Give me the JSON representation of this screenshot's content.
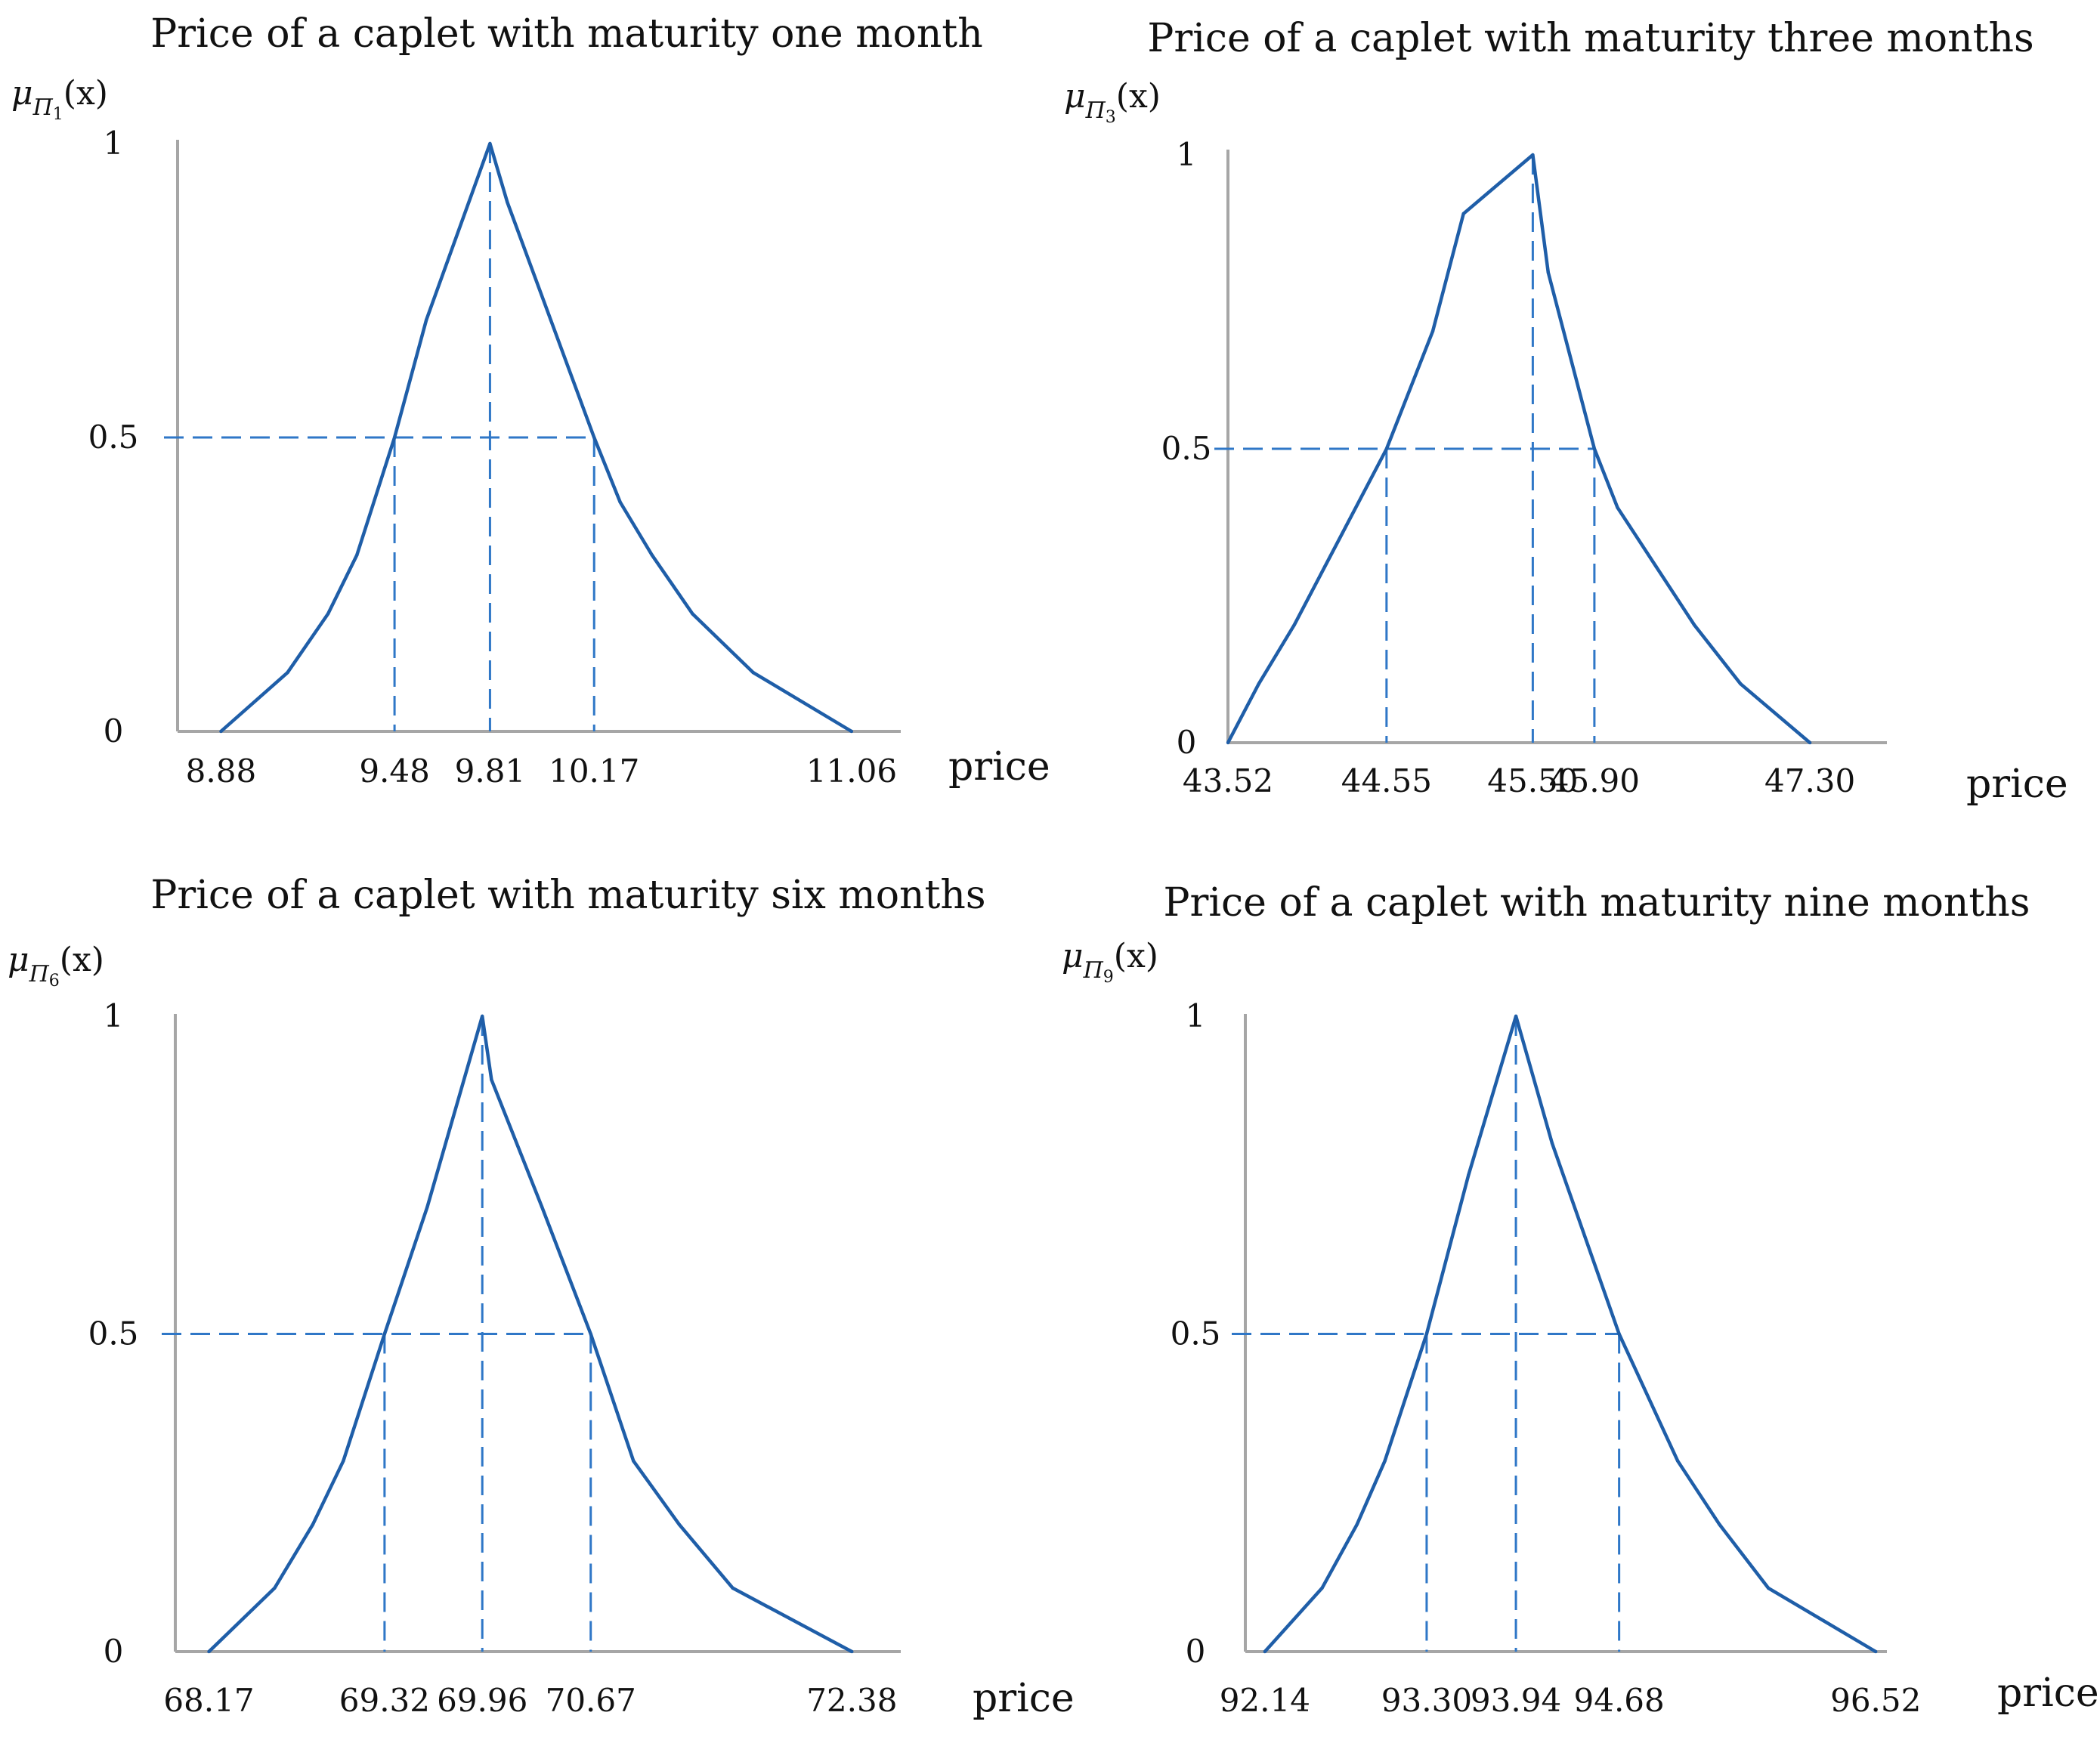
{
  "figure": {
    "curve_color": "#1f5ea8",
    "guide_color": "#2f77c7"
  },
  "chart_data": [
    {
      "type": "line",
      "title": "Price of a caplet with maturity one month",
      "ylabel": {
        "base": "μ",
        "sub_letter": "Π",
        "sub_index": "1",
        "arg": "(x)"
      },
      "xlabel": "price",
      "yticks": [
        {
          "value": 0,
          "label": "0"
        },
        {
          "value": 0.5,
          "label": "0.5"
        },
        {
          "value": 1,
          "label": "1"
        }
      ],
      "xticks": [
        {
          "value": 8.88,
          "label": "8.88"
        },
        {
          "value": 9.48,
          "label": "9.48"
        },
        {
          "value": 9.81,
          "label": "9.81"
        },
        {
          "value": 10.17,
          "label": "10.17"
        },
        {
          "value": 11.06,
          "label": "11.06"
        }
      ],
      "xlim": [
        8.73,
        11.23
      ],
      "ylim": [
        0,
        1
      ],
      "points": [
        [
          8.88,
          0
        ],
        [
          9.11,
          0.1
        ],
        [
          9.25,
          0.2
        ],
        [
          9.35,
          0.3
        ],
        [
          9.48,
          0.5
        ],
        [
          9.59,
          0.7
        ],
        [
          9.81,
          1.0
        ],
        [
          9.87,
          0.9
        ],
        [
          10.02,
          0.7
        ],
        [
          10.17,
          0.5
        ],
        [
          10.26,
          0.39
        ],
        [
          10.37,
          0.3
        ],
        [
          10.51,
          0.2
        ],
        [
          10.72,
          0.1
        ],
        [
          11.06,
          0
        ]
      ],
      "alpha_cut": {
        "level": 0.5,
        "left": 9.48,
        "peak": 9.81,
        "right": 10.17
      }
    },
    {
      "type": "line",
      "title": "Price of a caplet with maturity three months",
      "ylabel": {
        "base": "μ",
        "sub_letter": "Π",
        "sub_index": "3",
        "arg": "(x)"
      },
      "xlabel": "price",
      "yticks": [
        {
          "value": 0,
          "label": "0"
        },
        {
          "value": 0.5,
          "label": "0.5"
        },
        {
          "value": 1,
          "label": "1"
        }
      ],
      "xticks": [
        {
          "value": 43.52,
          "label": "43.52"
        },
        {
          "value": 44.55,
          "label": "44.55"
        },
        {
          "value": 45.5,
          "label": "45.50"
        },
        {
          "value": 45.9,
          "label": "45.90"
        },
        {
          "value": 47.3,
          "label": "47.30"
        }
      ],
      "xlim": [
        43.52,
        47.8
      ],
      "ylim": [
        0,
        1
      ],
      "points": [
        [
          43.52,
          0
        ],
        [
          43.72,
          0.1
        ],
        [
          43.95,
          0.2
        ],
        [
          44.15,
          0.3
        ],
        [
          44.55,
          0.5
        ],
        [
          44.85,
          0.7
        ],
        [
          45.05,
          0.9
        ],
        [
          45.5,
          1.0
        ],
        [
          45.6,
          0.8
        ],
        [
          45.9,
          0.5
        ],
        [
          46.05,
          0.4
        ],
        [
          46.3,
          0.3
        ],
        [
          46.55,
          0.2
        ],
        [
          46.85,
          0.1
        ],
        [
          47.3,
          0
        ]
      ],
      "alpha_cut": {
        "level": 0.5,
        "left": 44.55,
        "peak": 45.5,
        "right": 45.9
      }
    },
    {
      "type": "line",
      "title": "Price of a caplet with maturity six months",
      "ylabel": {
        "base": "μ",
        "sub_letter": "Π",
        "sub_index": "6",
        "arg": "(x)"
      },
      "xlabel": "price",
      "yticks": [
        {
          "value": 0,
          "label": "0"
        },
        {
          "value": 0.5,
          "label": "0.5"
        },
        {
          "value": 1,
          "label": "1"
        }
      ],
      "xticks": [
        {
          "value": 68.17,
          "label": "68.17"
        },
        {
          "value": 69.32,
          "label": "69.32"
        },
        {
          "value": 69.96,
          "label": "69.96"
        },
        {
          "value": 70.67,
          "label": "70.67"
        },
        {
          "value": 72.38,
          "label": "72.38"
        }
      ],
      "xlim": [
        67.95,
        72.7
      ],
      "ylim": [
        0,
        1
      ],
      "points": [
        [
          68.17,
          0
        ],
        [
          68.6,
          0.1
        ],
        [
          68.85,
          0.2
        ],
        [
          69.05,
          0.3
        ],
        [
          69.32,
          0.5
        ],
        [
          69.6,
          0.7
        ],
        [
          69.96,
          1.0
        ],
        [
          70.02,
          0.9
        ],
        [
          70.35,
          0.7
        ],
        [
          70.67,
          0.5
        ],
        [
          70.95,
          0.3
        ],
        [
          71.25,
          0.2
        ],
        [
          71.6,
          0.1
        ],
        [
          72.38,
          0
        ]
      ],
      "alpha_cut": {
        "level": 0.5,
        "left": 69.32,
        "peak": 69.96,
        "right": 70.67
      }
    },
    {
      "type": "line",
      "title": "Price of a caplet with maturity nine months",
      "ylabel": {
        "base": "μ",
        "sub_letter": "Π",
        "sub_index": "9",
        "arg": "(x)"
      },
      "xlabel": "price",
      "yticks": [
        {
          "value": 0,
          "label": "0"
        },
        {
          "value": 0.5,
          "label": "0.5"
        },
        {
          "value": 1,
          "label": "1"
        }
      ],
      "xticks": [
        {
          "value": 92.14,
          "label": "92.14"
        },
        {
          "value": 93.3,
          "label": "93.30"
        },
        {
          "value": 93.94,
          "label": "93.94"
        },
        {
          "value": 94.68,
          "label": "94.68"
        },
        {
          "value": 96.52,
          "label": "96.52"
        }
      ],
      "xlim": [
        92.0,
        96.6
      ],
      "ylim": [
        0,
        1
      ],
      "points": [
        [
          92.14,
          0
        ],
        [
          92.55,
          0.1
        ],
        [
          92.8,
          0.2
        ],
        [
          93.0,
          0.3
        ],
        [
          93.3,
          0.5
        ],
        [
          93.6,
          0.75
        ],
        [
          93.94,
          1.0
        ],
        [
          94.2,
          0.8
        ],
        [
          94.68,
          0.5
        ],
        [
          95.1,
          0.3
        ],
        [
          95.4,
          0.2
        ],
        [
          95.75,
          0.1
        ],
        [
          96.52,
          0
        ]
      ],
      "alpha_cut": {
        "level": 0.5,
        "left": 93.3,
        "peak": 93.94,
        "right": 94.68
      }
    }
  ]
}
